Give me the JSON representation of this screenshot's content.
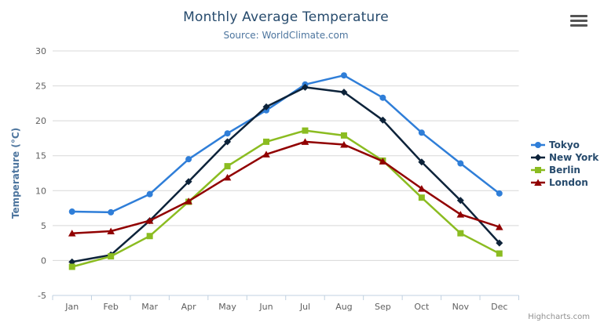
{
  "chart_data": {
    "type": "line",
    "title": "Monthly Average Temperature",
    "subtitle": "Source: WorldClimate.com",
    "categories": [
      "Jan",
      "Feb",
      "Mar",
      "Apr",
      "May",
      "Jun",
      "Jul",
      "Aug",
      "Sep",
      "Oct",
      "Nov",
      "Dec"
    ],
    "series": [
      {
        "name": "Tokyo",
        "color": "#2f7ed8",
        "marker": "circle",
        "values": [
          7.0,
          6.9,
          9.5,
          14.5,
          18.2,
          21.5,
          25.2,
          26.5,
          23.3,
          18.3,
          13.9,
          9.6
        ]
      },
      {
        "name": "New York",
        "color": "#0d233a",
        "marker": "diamond",
        "values": [
          -0.2,
          0.8,
          5.7,
          11.3,
          17.0,
          22.0,
          24.8,
          24.1,
          20.1,
          14.1,
          8.6,
          2.5
        ]
      },
      {
        "name": "Berlin",
        "color": "#8bbc21",
        "marker": "square",
        "values": [
          -0.9,
          0.6,
          3.5,
          8.4,
          13.5,
          17.0,
          18.6,
          17.9,
          14.3,
          9.0,
          3.9,
          1.0
        ]
      },
      {
        "name": "London",
        "color": "#910000",
        "marker": "triangle",
        "values": [
          3.9,
          4.2,
          5.7,
          8.5,
          11.9,
          15.2,
          17.0,
          16.6,
          14.2,
          10.3,
          6.6,
          4.8
        ]
      }
    ],
    "xlabel": "",
    "ylabel": "Temperature (°C)",
    "ylim": [
      -5,
      30
    ],
    "y_tick_interval": 5,
    "grid": true,
    "legend_position": "right",
    "colors": {
      "title": "#274b6d",
      "subtitle": "#4d759e",
      "axis_label": "#606060",
      "axis_title": "#4d759e",
      "gridline": "#d8d8d8",
      "axis_line": "#c0d0e0"
    }
  },
  "credits": {
    "label": "Highcharts.com"
  },
  "context_menu": {
    "icon": "hamburger-icon"
  }
}
